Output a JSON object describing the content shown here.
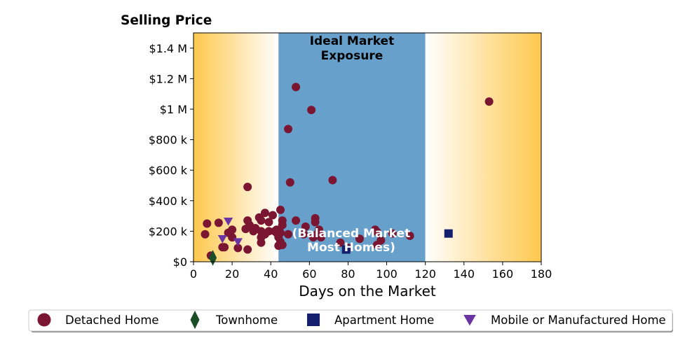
{
  "chart_data": {
    "type": "scatter",
    "title": "Selling Price",
    "xlabel": "Days on the Market",
    "ylabel": "",
    "xlim": [
      0,
      180
    ],
    "ylim": [
      0,
      1500000
    ],
    "x_ticks": [
      0,
      20,
      40,
      60,
      80,
      100,
      120,
      140,
      160,
      180
    ],
    "x_tick_labels": [
      "0",
      "20",
      "40",
      "60",
      "80",
      "100",
      "120",
      "140",
      "160",
      "180"
    ],
    "y_ticks": [
      0,
      200000,
      400000,
      600000,
      800000,
      1000000,
      1200000,
      1400000
    ],
    "y_tick_labels": [
      "$0",
      "$200 k",
      "$400 k",
      "$600 k",
      "$800 k",
      "$1 M",
      "$1.2 M",
      "$1.4 M"
    ],
    "grid": false,
    "legend_position": "bottom",
    "background_band": {
      "x_range": [
        44,
        120
      ],
      "label_top": [
        "Ideal Market",
        "Exposure"
      ],
      "label_bottom": [
        "(Balanced Market",
        "Most Homes)"
      ],
      "band_color": "#68a0cc",
      "gradient_edge_color": "#fec84d",
      "gradient_center_color": "#ffffff"
    },
    "series": [
      {
        "name": "Detached Home",
        "marker": "circle",
        "color": "#7a1532",
        "points": [
          [
            6,
            180000
          ],
          [
            7,
            250000
          ],
          [
            9,
            40000
          ],
          [
            13,
            255000
          ],
          [
            15,
            95000
          ],
          [
            16,
            95000
          ],
          [
            18,
            190000
          ],
          [
            20,
            160000
          ],
          [
            20,
            210000
          ],
          [
            23,
            90000
          ],
          [
            27,
            215000
          ],
          [
            28,
            270000
          ],
          [
            28,
            490000
          ],
          [
            28,
            80000
          ],
          [
            29,
            240000
          ],
          [
            31,
            200000
          ],
          [
            32,
            220000
          ],
          [
            34,
            290000
          ],
          [
            35,
            270000
          ],
          [
            35,
            200000
          ],
          [
            35,
            125000
          ],
          [
            35,
            160000
          ],
          [
            37,
            320000
          ],
          [
            37,
            180000
          ],
          [
            39,
            200000
          ],
          [
            39,
            260000
          ],
          [
            41,
            305000
          ],
          [
            42,
            200000
          ],
          [
            43,
            210000
          ],
          [
            43,
            190000
          ],
          [
            44,
            105000
          ],
          [
            44,
            160000
          ],
          [
            45,
            190000
          ],
          [
            45,
            130000
          ],
          [
            45,
            340000
          ],
          [
            46,
            110000
          ],
          [
            46,
            270000
          ],
          [
            46,
            240000
          ],
          [
            49,
            870000
          ],
          [
            49,
            180000
          ],
          [
            50,
            520000
          ],
          [
            53,
            1145000
          ],
          [
            53,
            270000
          ],
          [
            57,
            180000
          ],
          [
            58,
            230000
          ],
          [
            61,
            995000
          ],
          [
            62,
            160000
          ],
          [
            63,
            285000
          ],
          [
            63,
            260000
          ],
          [
            64,
            180000
          ],
          [
            65,
            200000
          ],
          [
            65,
            210000
          ],
          [
            66,
            160000
          ],
          [
            72,
            535000
          ],
          [
            76,
            125000
          ],
          [
            80,
            90000
          ],
          [
            86,
            150000
          ],
          [
            94,
            210000
          ],
          [
            95,
            195000
          ],
          [
            95,
            110000
          ],
          [
            97,
            140000
          ],
          [
            103,
            185000
          ],
          [
            112,
            170000
          ],
          [
            153,
            1050000
          ]
        ]
      },
      {
        "name": "Townhome",
        "marker": "diamond",
        "color": "#1b4d26",
        "points": [
          [
            10,
            25000
          ]
        ]
      },
      {
        "name": "Apartment Home",
        "marker": "square",
        "color": "#131f6d",
        "points": [
          [
            79,
            80000
          ],
          [
            132,
            185000
          ]
        ]
      },
      {
        "name": "Mobile or Manufactured Home",
        "marker": "triangle-down",
        "color": "#6a35a2",
        "points": [
          [
            15,
            150000
          ],
          [
            18,
            265000
          ],
          [
            23,
            130000
          ]
        ]
      }
    ]
  }
}
